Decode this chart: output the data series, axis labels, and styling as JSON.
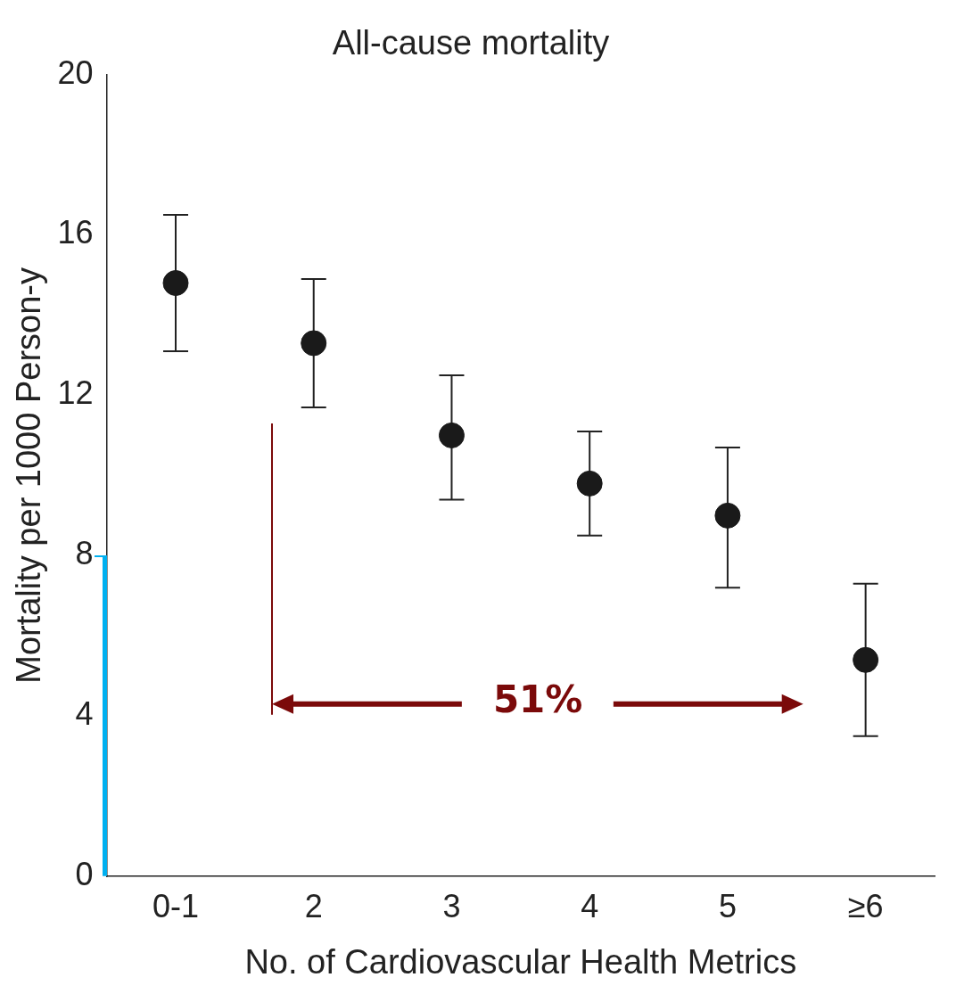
{
  "chart_data": {
    "type": "scatter",
    "title": "All-cause mortality",
    "xlabel": "No. of Cardiovascular Health Metrics",
    "ylabel": "Mortality per 1000 Person-y",
    "categories": [
      "0-1",
      "2",
      "3",
      "4",
      "5",
      "≥6"
    ],
    "series": [
      {
        "color": "#1a1a1a",
        "values": [
          14.8,
          13.3,
          11.0,
          9.8,
          9.0,
          5.4
        ],
        "errors": [
          [
            13.1,
            16.5
          ],
          [
            11.7,
            14.9
          ],
          [
            9.4,
            12.5
          ],
          [
            8.5,
            11.1
          ],
          [
            7.2,
            10.7
          ],
          [
            3.5,
            7.3
          ]
        ]
      }
    ],
    "ylim": [
      0,
      20
    ],
    "yticks": [
      0,
      4,
      8,
      12,
      16,
      20
    ],
    "grid": false,
    "legend": false,
    "marker": "circle",
    "annotations": [
      "51%"
    ]
  }
}
